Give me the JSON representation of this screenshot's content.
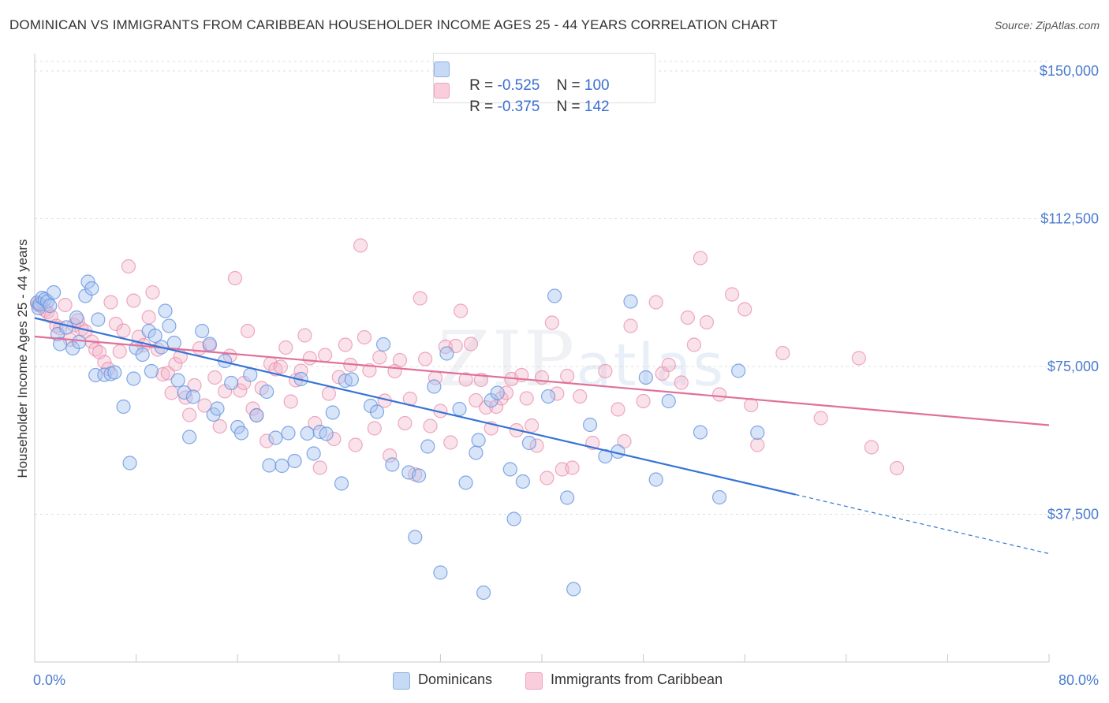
{
  "title": "DOMINICAN VS IMMIGRANTS FROM CARIBBEAN HOUSEHOLDER INCOME AGES 25 - 44 YEARS CORRELATION CHART",
  "source": "Source: ZipAtlas.com",
  "watermark": {
    "bold": "ZIP",
    "light": "atlas"
  },
  "legend_top": [
    {
      "r_label": "R = ",
      "r_value": "-0.525",
      "n_label": "N = ",
      "n_value": "100",
      "color": "#a9c4ef"
    },
    {
      "r_label": "R = ",
      "r_value": "-0.375",
      "n_label": "N = ",
      "n_value": "142",
      "color": "#f3b3c8"
    }
  ],
  "legend_bottom": [
    {
      "label": "Dominicans",
      "color": "#a9c4ef"
    },
    {
      "label": "Immigrants from Caribbean",
      "color": "#f3b3c8"
    }
  ],
  "chart_data": {
    "type": "scatter",
    "title": "DOMINICAN VS IMMIGRANTS FROM CARIBBEAN HOUSEHOLDER INCOME AGES 25 - 44 YEARS CORRELATION CHART",
    "xlabel": "",
    "ylabel": "Householder Income Ages 25 - 44 years",
    "xlim": [
      0,
      80
    ],
    "ylim": [
      0,
      153000
    ],
    "x_tick_labels": [
      "0.0%",
      "80.0%"
    ],
    "y_ticks": [
      37500,
      75000,
      112500,
      150000
    ],
    "y_tick_labels": [
      "$37,500",
      "$75,000",
      "$112,500",
      "$150,000"
    ],
    "grid": true,
    "legend_placement": "top-center",
    "series": [
      {
        "name": "Dominicans",
        "color": "#6f9fe6",
        "trend": {
          "x0": 0,
          "y0": 87300,
          "x1": 60,
          "y1": 42500,
          "dashed_to_x": 80,
          "dashed_to_y": 27500
        },
        "points": [
          [
            0.2,
            91200
          ],
          [
            0.3,
            89800
          ],
          [
            0.4,
            90800
          ],
          [
            0.6,
            92400
          ],
          [
            0.8,
            92000
          ],
          [
            1,
            91500
          ],
          [
            1.2,
            90400
          ],
          [
            1.5,
            93800
          ],
          [
            1.8,
            83200
          ],
          [
            2,
            80700
          ],
          [
            2.5,
            84900
          ],
          [
            3,
            79600
          ],
          [
            3.3,
            87400
          ],
          [
            3.5,
            81200
          ],
          [
            4,
            92900
          ],
          [
            4.2,
            96500
          ],
          [
            4.5,
            94800
          ],
          [
            4.8,
            72800
          ],
          [
            5,
            86900
          ],
          [
            5.5,
            72900
          ],
          [
            6,
            73100
          ],
          [
            6.3,
            73500
          ],
          [
            7,
            64800
          ],
          [
            7.5,
            50500
          ],
          [
            7.8,
            71900
          ],
          [
            8,
            79700
          ],
          [
            8.5,
            78000
          ],
          [
            9,
            84000
          ],
          [
            9.2,
            73800
          ],
          [
            9.5,
            82800
          ],
          [
            10,
            79900
          ],
          [
            10.3,
            89100
          ],
          [
            10.6,
            85300
          ],
          [
            11,
            81000
          ],
          [
            11.3,
            71500
          ],
          [
            11.8,
            68400
          ],
          [
            12.2,
            57100
          ],
          [
            12.5,
            67300
          ],
          [
            13.2,
            84000
          ],
          [
            13.8,
            80700
          ],
          [
            14.1,
            62800
          ],
          [
            14.4,
            64300
          ],
          [
            15,
            76400
          ],
          [
            15.5,
            70800
          ],
          [
            16,
            59600
          ],
          [
            16.3,
            58100
          ],
          [
            17,
            72900
          ],
          [
            17.5,
            62600
          ],
          [
            18.3,
            68600
          ],
          [
            18.5,
            49900
          ],
          [
            19,
            56900
          ],
          [
            19.5,
            49800
          ],
          [
            20,
            58100
          ],
          [
            20.5,
            51000
          ],
          [
            21,
            71800
          ],
          [
            21.5,
            58000
          ],
          [
            22,
            52900
          ],
          [
            22.5,
            58400
          ],
          [
            23,
            57900
          ],
          [
            23.5,
            63300
          ],
          [
            24.2,
            45300
          ],
          [
            24.5,
            71400
          ],
          [
            25,
            71700
          ],
          [
            26.5,
            65000
          ],
          [
            27,
            63500
          ],
          [
            27.5,
            80600
          ],
          [
            28.2,
            50100
          ],
          [
            29.5,
            48100
          ],
          [
            30,
            31700
          ],
          [
            30.3,
            47300
          ],
          [
            31,
            54700
          ],
          [
            31.5,
            69900
          ],
          [
            32,
            22700
          ],
          [
            32.5,
            78300
          ],
          [
            33.5,
            64200
          ],
          [
            34,
            45500
          ],
          [
            34.8,
            53100
          ],
          [
            35,
            56300
          ],
          [
            35.4,
            17600
          ],
          [
            36,
            66400
          ],
          [
            36.5,
            68300
          ],
          [
            37.5,
            48900
          ],
          [
            37.8,
            36300
          ],
          [
            38.5,
            45800
          ],
          [
            39,
            55600
          ],
          [
            40.5,
            67400
          ],
          [
            41,
            92900
          ],
          [
            42,
            41700
          ],
          [
            42.5,
            18500
          ],
          [
            43.8,
            60200
          ],
          [
            45,
            52200
          ],
          [
            46,
            53400
          ],
          [
            47,
            91500
          ],
          [
            48.2,
            72200
          ],
          [
            49,
            46300
          ],
          [
            50,
            66200
          ],
          [
            52.5,
            58300
          ],
          [
            54,
            41800
          ],
          [
            55.5,
            73900
          ],
          [
            57,
            58200
          ]
        ]
      },
      {
        "name": "Immigrants from Caribbean",
        "color": "#ee8fb0",
        "trend": {
          "x0": 0,
          "y0": 82600,
          "x1": 80,
          "y1": 60100
        },
        "points": [
          [
            0.2,
            91100
          ],
          [
            0.3,
            90600
          ],
          [
            0.5,
            90400
          ],
          [
            0.8,
            89300
          ],
          [
            1,
            88800
          ],
          [
            1.3,
            87700
          ],
          [
            1.7,
            85300
          ],
          [
            2,
            84700
          ],
          [
            2.4,
            90600
          ],
          [
            2.8,
            81800
          ],
          [
            3.1,
            85500
          ],
          [
            3.4,
            86700
          ],
          [
            3.7,
            84500
          ],
          [
            4,
            83900
          ],
          [
            4.5,
            81300
          ],
          [
            4.8,
            79300
          ],
          [
            5.1,
            78600
          ],
          [
            5.5,
            76100
          ],
          [
            5.8,
            74400
          ],
          [
            6,
            91300
          ],
          [
            6.4,
            85800
          ],
          [
            6.7,
            78800
          ],
          [
            7,
            84100
          ],
          [
            7.4,
            100400
          ],
          [
            7.8,
            91700
          ],
          [
            8.2,
            82500
          ],
          [
            8.6,
            80400
          ],
          [
            9,
            87500
          ],
          [
            9.3,
            93800
          ],
          [
            9.7,
            79300
          ],
          [
            10.1,
            73000
          ],
          [
            10.5,
            73300
          ],
          [
            10.8,
            68300
          ],
          [
            11.1,
            75600
          ],
          [
            11.5,
            77500
          ],
          [
            11.9,
            67100
          ],
          [
            12.2,
            62700
          ],
          [
            12.6,
            70200
          ],
          [
            13,
            79600
          ],
          [
            13.4,
            65100
          ],
          [
            13.8,
            80300
          ],
          [
            14.2,
            72200
          ],
          [
            14.6,
            59800
          ],
          [
            15,
            68700
          ],
          [
            15.4,
            77700
          ],
          [
            15.8,
            97400
          ],
          [
            16.2,
            68900
          ],
          [
            16.5,
            70800
          ],
          [
            16.8,
            84000
          ],
          [
            17.2,
            64300
          ],
          [
            17.5,
            62600
          ],
          [
            17.9,
            69500
          ],
          [
            18.3,
            56100
          ],
          [
            18.6,
            75700
          ],
          [
            19,
            74300
          ],
          [
            19.4,
            74900
          ],
          [
            19.8,
            79800
          ],
          [
            20.2,
            66100
          ],
          [
            20.6,
            71500
          ],
          [
            21,
            73900
          ],
          [
            21.3,
            82900
          ],
          [
            21.7,
            77100
          ],
          [
            22.1,
            60600
          ],
          [
            22.5,
            49300
          ],
          [
            22.9,
            77900
          ],
          [
            23.2,
            68100
          ],
          [
            23.6,
            56600
          ],
          [
            24,
            72300
          ],
          [
            24.5,
            80500
          ],
          [
            24.9,
            75400
          ],
          [
            25.3,
            55100
          ],
          [
            25.7,
            105700
          ],
          [
            26,
            82400
          ],
          [
            26.4,
            74000
          ],
          [
            26.8,
            59300
          ],
          [
            27.2,
            77300
          ],
          [
            27.6,
            66300
          ],
          [
            28,
            52400
          ],
          [
            28.4,
            73800
          ],
          [
            28.8,
            76600
          ],
          [
            29.2,
            60600
          ],
          [
            29.6,
            66800
          ],
          [
            30,
            47600
          ],
          [
            30.4,
            92300
          ],
          [
            30.8,
            76900
          ],
          [
            31.2,
            59900
          ],
          [
            31.6,
            72100
          ],
          [
            32,
            63700
          ],
          [
            32.4,
            80000
          ],
          [
            32.8,
            55700
          ],
          [
            33.2,
            80200
          ],
          [
            33.6,
            89100
          ],
          [
            34,
            71700
          ],
          [
            34.4,
            80700
          ],
          [
            34.8,
            66400
          ],
          [
            35.2,
            71600
          ],
          [
            35.6,
            64600
          ],
          [
            36,
            59300
          ],
          [
            36.4,
            64800
          ],
          [
            36.8,
            66900
          ],
          [
            37.2,
            68300
          ],
          [
            37.6,
            71800
          ],
          [
            38,
            58800
          ],
          [
            38.4,
            72800
          ],
          [
            38.8,
            66900
          ],
          [
            39.2,
            60000
          ],
          [
            39.6,
            54900
          ],
          [
            40,
            72200
          ],
          [
            40.4,
            46700
          ],
          [
            40.8,
            86100
          ],
          [
            41.2,
            68100
          ],
          [
            41.6,
            48900
          ],
          [
            42,
            72600
          ],
          [
            42.4,
            49300
          ],
          [
            43,
            67400
          ],
          [
            44,
            55600
          ],
          [
            45,
            73800
          ],
          [
            46,
            64100
          ],
          [
            46.5,
            56000
          ],
          [
            47,
            85300
          ],
          [
            48,
            66200
          ],
          [
            49,
            91300
          ],
          [
            49.5,
            73200
          ],
          [
            50,
            75400
          ],
          [
            51,
            70900
          ],
          [
            51.5,
            87400
          ],
          [
            52,
            80500
          ],
          [
            52.5,
            102500
          ],
          [
            53,
            86200
          ],
          [
            54,
            67900
          ],
          [
            55,
            93300
          ],
          [
            56,
            89500
          ],
          [
            56.5,
            65200
          ],
          [
            57,
            55100
          ],
          [
            59,
            78400
          ],
          [
            62,
            61900
          ],
          [
            65,
            77100
          ],
          [
            66,
            54500
          ],
          [
            68,
            49200
          ]
        ]
      }
    ]
  }
}
